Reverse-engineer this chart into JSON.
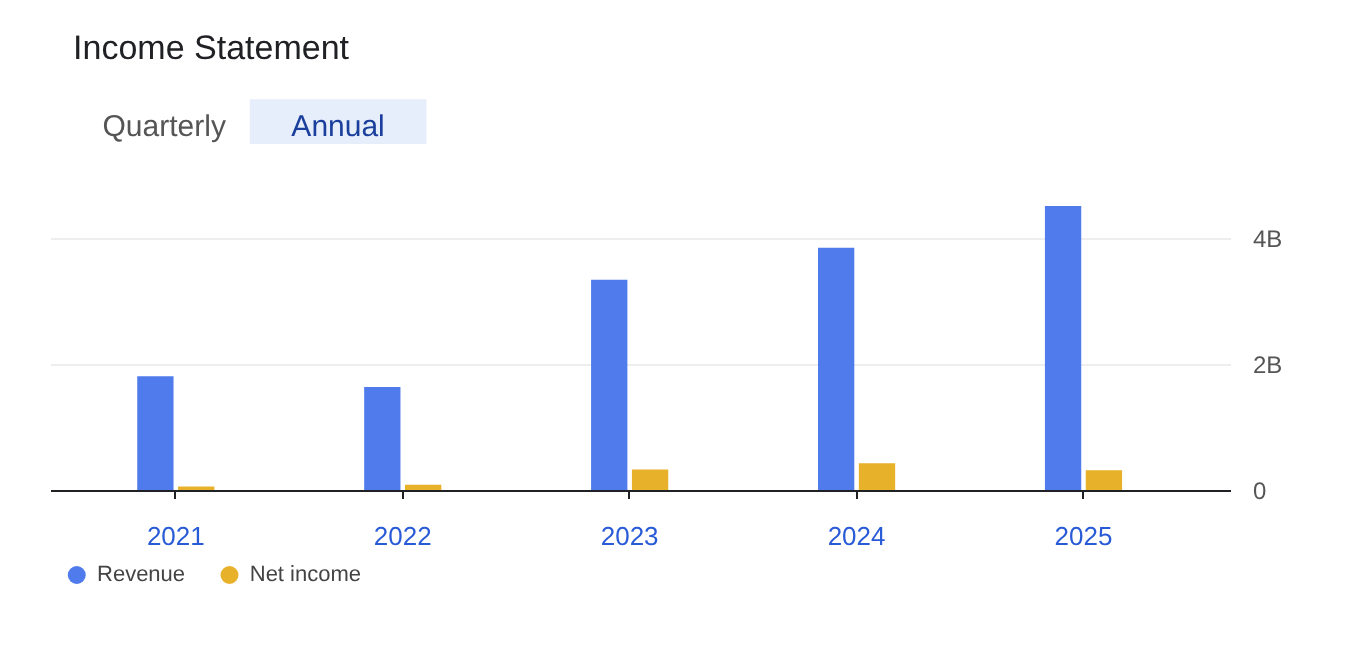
{
  "chart_data": {
    "type": "bar",
    "title": "Income Statement",
    "annotations": [
      "Quarterly",
      "Annual"
    ],
    "categories": [
      "2021",
      "2022",
      "2023",
      "2024",
      "2025"
    ],
    "series": [
      {
        "name": "Revenue",
        "color": "#4f7bec",
        "values": [
          1.82,
          1.65,
          3.35,
          3.86,
          4.52
        ]
      },
      {
        "name": "Net income",
        "color": "#e8b12a",
        "values": [
          0.07,
          0.1,
          0.34,
          0.44,
          0.33
        ]
      }
    ],
    "ylim": [
      0,
      4.6
    ],
    "yticks": [
      0,
      {
        "value": 2,
        "label": "2B"
      },
      {
        "value": 4,
        "label": "4B"
      }
    ],
    "grid": "y",
    "legend": "bottom left"
  }
}
